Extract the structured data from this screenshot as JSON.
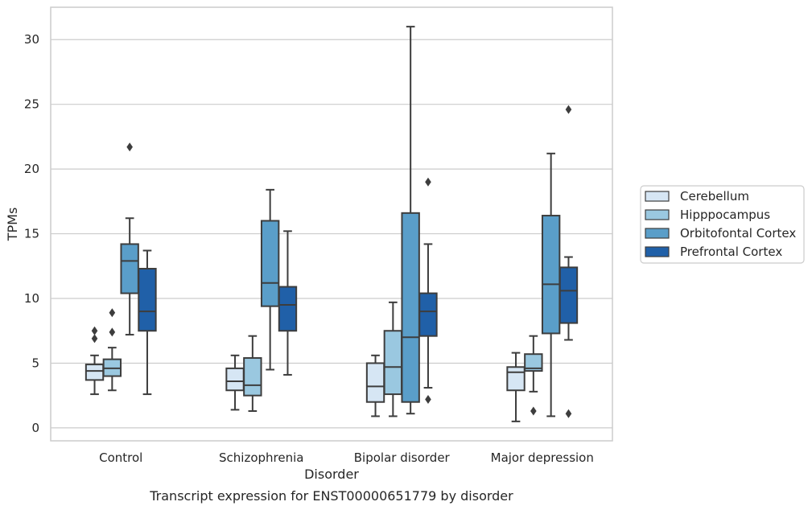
{
  "caption": "Transcript expression for ENST00000651779 by disorder",
  "chart_data": {
    "type": "box",
    "title": "",
    "xlabel": "Disorder",
    "ylabel": "TPMs",
    "ylim": [
      -1,
      32.5
    ],
    "yticks": [
      0,
      5,
      10,
      15,
      20,
      25,
      30
    ],
    "grid": "horizontal",
    "legend_position": "right",
    "categories": [
      "Control",
      "Schizophrenia",
      "Bipolar disorder",
      "Major depression"
    ],
    "series": [
      {
        "name": "Cerebellum",
        "color": "#d6e6f4",
        "boxes": [
          {
            "whislo": 2.6,
            "q1": 3.7,
            "med": 4.4,
            "q3": 4.9,
            "whishi": 5.6,
            "fliers": [
              6.9,
              7.5
            ]
          },
          {
            "whislo": 1.4,
            "q1": 2.9,
            "med": 3.6,
            "q3": 4.6,
            "whishi": 5.6,
            "fliers": []
          },
          {
            "whislo": 0.9,
            "q1": 2.0,
            "med": 3.2,
            "q3": 5.0,
            "whishi": 5.6,
            "fliers": []
          },
          {
            "whislo": 0.5,
            "q1": 2.9,
            "med": 4.3,
            "q3": 4.7,
            "whishi": 5.8,
            "fliers": []
          }
        ]
      },
      {
        "name": "Hipppocampus",
        "color": "#9ac8e0",
        "boxes": [
          {
            "whislo": 2.9,
            "q1": 4.0,
            "med": 4.6,
            "q3": 5.3,
            "whishi": 6.2,
            "fliers": [
              7.4,
              8.9
            ]
          },
          {
            "whislo": 1.3,
            "q1": 2.5,
            "med": 3.3,
            "q3": 5.4,
            "whishi": 7.1,
            "fliers": []
          },
          {
            "whislo": 0.9,
            "q1": 2.6,
            "med": 4.7,
            "q3": 7.5,
            "whishi": 9.7,
            "fliers": []
          },
          {
            "whislo": 2.8,
            "q1": 4.4,
            "med": 4.6,
            "q3": 5.7,
            "whishi": 7.1,
            "fliers": [
              1.3
            ]
          }
        ]
      },
      {
        "name": "Orbitofontal Cortex",
        "color": "#5a9ec9",
        "boxes": [
          {
            "whislo": 7.2,
            "q1": 10.4,
            "med": 12.9,
            "q3": 14.2,
            "whishi": 16.2,
            "fliers": [
              21.7
            ]
          },
          {
            "whislo": 4.5,
            "q1": 9.4,
            "med": 11.2,
            "q3": 16.0,
            "whishi": 18.4,
            "fliers": []
          },
          {
            "whislo": 1.1,
            "q1": 2.0,
            "med": 7.0,
            "q3": 16.6,
            "whishi": 31.0,
            "fliers": []
          },
          {
            "whislo": 0.9,
            "q1": 7.3,
            "med": 11.1,
            "q3": 16.4,
            "whishi": 21.2,
            "fliers": []
          }
        ]
      },
      {
        "name": "Prefrontal Cortex",
        "color": "#2060a8",
        "boxes": [
          {
            "whislo": 2.6,
            "q1": 7.5,
            "med": 9.0,
            "q3": 12.3,
            "whishi": 13.7,
            "fliers": []
          },
          {
            "whislo": 4.1,
            "q1": 7.5,
            "med": 9.5,
            "q3": 10.9,
            "whishi": 15.2,
            "fliers": []
          },
          {
            "whislo": 3.1,
            "q1": 7.1,
            "med": 9.0,
            "q3": 10.4,
            "whishi": 14.2,
            "fliers": [
              2.2,
              19.0
            ]
          },
          {
            "whislo": 6.8,
            "q1": 8.1,
            "med": 10.6,
            "q3": 12.4,
            "whishi": 13.2,
            "fliers": [
              1.1,
              24.6
            ]
          }
        ]
      }
    ]
  }
}
